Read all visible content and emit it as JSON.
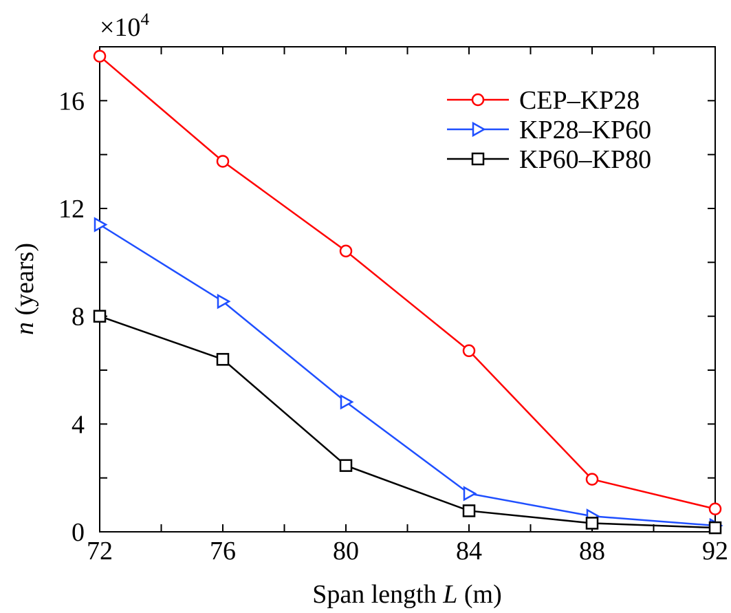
{
  "chart_data": {
    "type": "line",
    "x": [
      72,
      76,
      80,
      84,
      88,
      92
    ],
    "xlim": [
      72,
      92
    ],
    "ylim": [
      0,
      180000
    ],
    "xticks": [
      72,
      76,
      80,
      84,
      88,
      92
    ],
    "yticks": [
      0,
      40000,
      80000,
      120000,
      160000
    ],
    "xtick_labels": [
      "72",
      "76",
      "80",
      "84",
      "88",
      "92"
    ],
    "ytick_labels": [
      "0",
      "4",
      "8",
      "12",
      "16"
    ],
    "multiplier_label": "×10",
    "multiplier_exponent": "4",
    "xlabel_prefix": "Span length ",
    "xlabel_var": "L",
    "xlabel_suffix": " (m)",
    "ylabel_var": "n",
    "ylabel_suffix": " (years)",
    "grid": false,
    "legend_position": "top-right",
    "series": [
      {
        "name": "CEP–KP28",
        "color": "#ff0000",
        "marker": "circle",
        "values": [
          176500,
          137500,
          104200,
          67200,
          19500,
          8500
        ]
      },
      {
        "name": "KP28–KP60",
        "color": "#1f4fff",
        "marker": "triangle-right",
        "values": [
          114000,
          85500,
          48200,
          14200,
          5800,
          2300
        ]
      },
      {
        "name": "KP60–KP80",
        "color": "#000000",
        "marker": "square",
        "values": [
          80000,
          64000,
          24600,
          7800,
          3200,
          1500
        ]
      }
    ]
  }
}
